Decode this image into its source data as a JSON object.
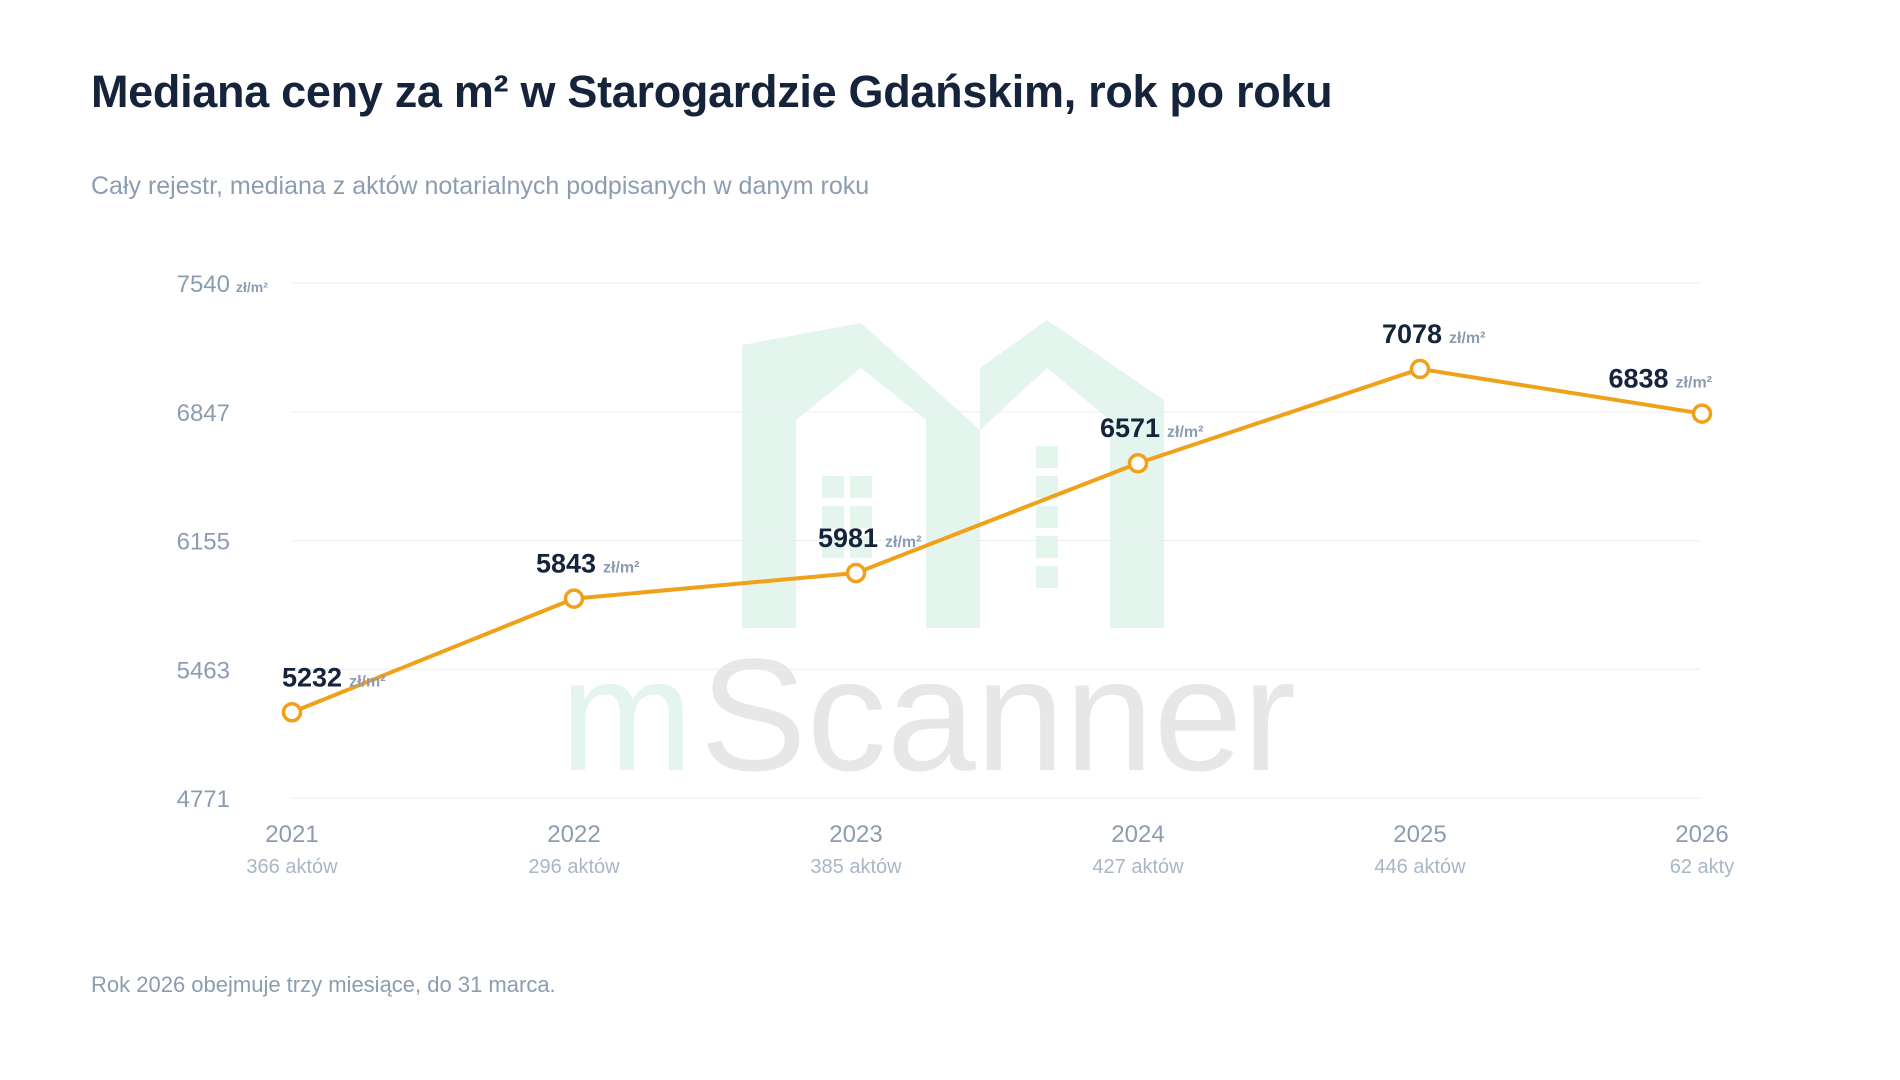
{
  "title": "Mediana ceny za m² w Starogardzie Gdańskim, rok po roku",
  "subtitle": "Cały rejestr, mediana z aktów notarialnych podpisanych w danym roku",
  "footnote": "Rok 2026 obejmuje trzy miesiące, do 31 marca.",
  "watermark": {
    "text_m": "m",
    "text_rest": "Scanner"
  },
  "colors": {
    "line": "#f0a11a",
    "grid": "#e9edf2",
    "watermark_green": "#e4f5ee",
    "watermark_gray": "#e7e7e7"
  },
  "chart_data": {
    "type": "line",
    "title": "Mediana ceny za m² w Starogardzie Gdańskim, rok po roku",
    "subtitle": "Cały rejestr, mediana z aktów notarialnych podpisanych w danym roku",
    "xlabel": "",
    "ylabel": "",
    "unit": "zł/m²",
    "ylim": [
      4771,
      7540
    ],
    "yticks": [
      4771,
      5463,
      6155,
      6847,
      7540
    ],
    "top_tick_unit": "zł/m²",
    "grid": true,
    "categories": [
      "2021",
      "2022",
      "2023",
      "2024",
      "2025",
      "2026"
    ],
    "counts": [
      "366 aktów",
      "296 aktów",
      "385 aktów",
      "427 aktów",
      "446 aktów",
      "62 akty"
    ],
    "series": [
      {
        "values": [
          5232,
          5843,
          5981,
          6571,
          7078,
          6838
        ]
      }
    ]
  }
}
